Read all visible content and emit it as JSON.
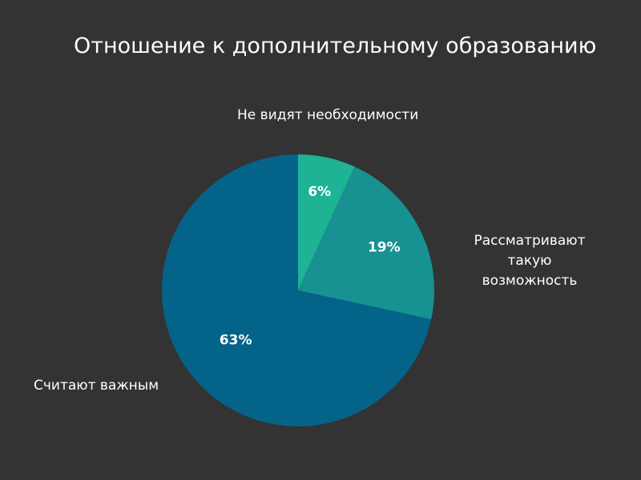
{
  "chart_data": {
    "type": "pie",
    "title": "Отношение к дополнительному образованию",
    "categories": [
      "Не видят необходимости",
      "Рассматривают такую возможность",
      "Считают важным"
    ],
    "values": [
      6,
      19,
      63
    ],
    "value_labels": [
      "6%",
      "19%",
      "63%"
    ],
    "colors": [
      "#1db394",
      "#179192",
      "#046389"
    ],
    "background": "#333333",
    "legend": "none"
  }
}
